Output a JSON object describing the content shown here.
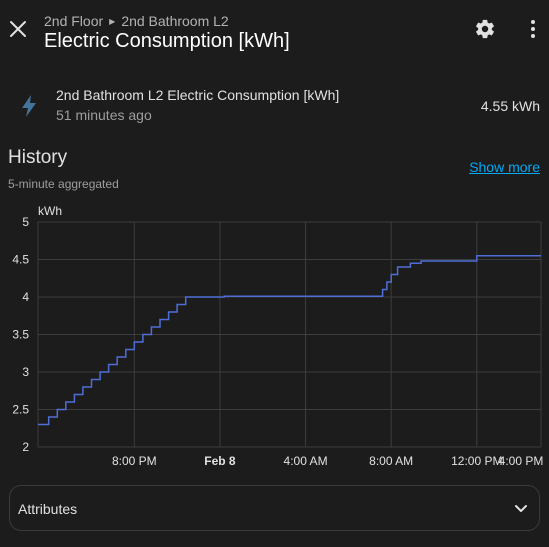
{
  "header": {
    "breadcrumb": [
      "2nd Floor",
      "2nd Bathroom L2"
    ],
    "title": "Electric Consumption [kWh]",
    "icons": [
      "close-icon",
      "gear-icon",
      "more-vertical-icon"
    ]
  },
  "entity": {
    "icon": "lightning-bolt-icon",
    "name": "2nd Bathroom L2 Electric Consumption [kWh]",
    "last_changed": "51 minutes ago",
    "state": "4.55 kWh"
  },
  "history": {
    "title": "History",
    "subtitle": "5-minute aggregated",
    "show_more": "Show more"
  },
  "chart_data": {
    "type": "line",
    "step": true,
    "unit": "kWh",
    "ylabel": "kWh",
    "ylim": [
      2,
      5
    ],
    "yticks": [
      "2",
      "2.5",
      "3",
      "3.5",
      "4",
      "4.5",
      "5"
    ],
    "xlim": [
      -4.5,
      19
    ],
    "xticks": [
      {
        "x": 0,
        "label": "8:00 PM",
        "bold": false
      },
      {
        "x": 4,
        "label": "Feb 8",
        "bold": true
      },
      {
        "x": 8,
        "label": "4:00 AM",
        "bold": false
      },
      {
        "x": 12,
        "label": "8:00 AM",
        "bold": false
      },
      {
        "x": 16,
        "label": "12:00 PM",
        "bold": false
      },
      {
        "x": 20,
        "label": "4:00 PM",
        "bold": false
      }
    ],
    "x_units": "hours after 8:00 PM",
    "series": [
      {
        "color": "#4e6ed6",
        "points": [
          [
            -4.5,
            2.3
          ],
          [
            -4.0,
            2.4
          ],
          [
            -3.6,
            2.5
          ],
          [
            -3.2,
            2.6
          ],
          [
            -2.8,
            2.7
          ],
          [
            -2.4,
            2.8
          ],
          [
            -2.0,
            2.9
          ],
          [
            -1.6,
            3.0
          ],
          [
            -1.2,
            3.1
          ],
          [
            -0.8,
            3.2
          ],
          [
            -0.4,
            3.3
          ],
          [
            0.0,
            3.4
          ],
          [
            0.4,
            3.5
          ],
          [
            0.8,
            3.6
          ],
          [
            1.2,
            3.7
          ],
          [
            1.6,
            3.8
          ],
          [
            2.0,
            3.9
          ],
          [
            2.4,
            4.0
          ],
          [
            4.2,
            4.01
          ],
          [
            11.6,
            4.1
          ],
          [
            11.8,
            4.2
          ],
          [
            12.0,
            4.3
          ],
          [
            12.3,
            4.4
          ],
          [
            12.9,
            4.45
          ],
          [
            13.4,
            4.48
          ],
          [
            16.0,
            4.55
          ],
          [
            19.0,
            4.55
          ]
        ]
      }
    ]
  },
  "attributes": {
    "label": "Attributes",
    "icon": "chevron-down-icon"
  }
}
